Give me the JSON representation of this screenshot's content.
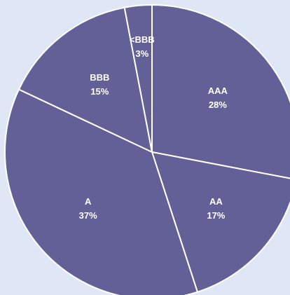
{
  "chart_data": {
    "type": "pie",
    "categories": [
      "AAA",
      "AA",
      "A",
      "BBB",
      "<BBB"
    ],
    "values": [
      28,
      17,
      37,
      15,
      3
    ],
    "value_labels": [
      "28%",
      "17%",
      "37%",
      "15%",
      "3%"
    ],
    "color": "#636097"
  }
}
